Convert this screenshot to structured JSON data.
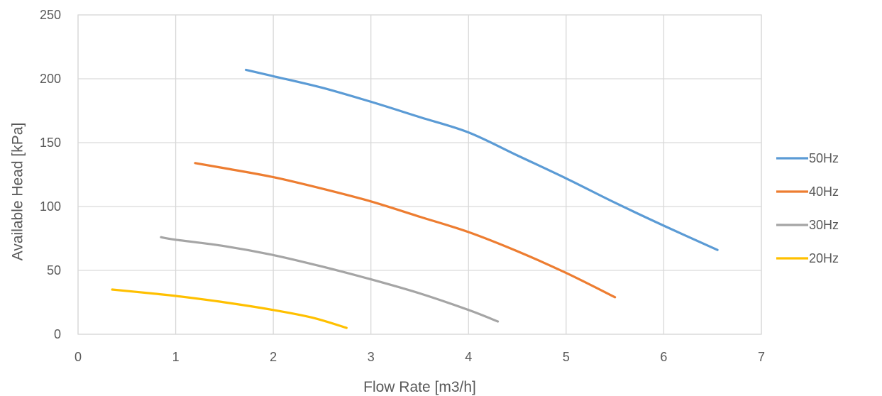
{
  "chart_data": {
    "type": "line",
    "title": "",
    "xlabel": "Flow Rate [m3/h]",
    "ylabel": "Available Head [kPa]",
    "xlim": [
      0,
      7
    ],
    "ylim": [
      0,
      250
    ],
    "x_ticks": [
      0,
      1,
      2,
      3,
      4,
      5,
      6,
      7
    ],
    "y_ticks": [
      0,
      50,
      100,
      150,
      200,
      250
    ],
    "grid": true,
    "legend_position": "right",
    "series": [
      {
        "name": "50Hz",
        "color": "#5b9bd5",
        "points": [
          [
            1.72,
            207
          ],
          [
            2.0,
            202
          ],
          [
            2.5,
            193
          ],
          [
            3.0,
            182
          ],
          [
            3.5,
            170
          ],
          [
            4.0,
            158
          ],
          [
            4.5,
            140
          ],
          [
            5.0,
            122
          ],
          [
            5.5,
            103
          ],
          [
            6.0,
            85
          ],
          [
            6.55,
            66
          ]
        ]
      },
      {
        "name": "40Hz",
        "color": "#ed7d31",
        "points": [
          [
            1.2,
            134
          ],
          [
            1.5,
            130
          ],
          [
            2.0,
            123
          ],
          [
            2.5,
            114
          ],
          [
            3.0,
            104
          ],
          [
            3.5,
            92
          ],
          [
            4.0,
            80
          ],
          [
            4.5,
            65
          ],
          [
            5.0,
            48
          ],
          [
            5.5,
            29
          ]
        ]
      },
      {
        "name": "30Hz",
        "color": "#a5a5a5",
        "points": [
          [
            0.85,
            76
          ],
          [
            1.0,
            74
          ],
          [
            1.5,
            69
          ],
          [
            2.0,
            62
          ],
          [
            2.5,
            53
          ],
          [
            3.0,
            43
          ],
          [
            3.5,
            32
          ],
          [
            4.0,
            19
          ],
          [
            4.3,
            10
          ]
        ]
      },
      {
        "name": "20Hz",
        "color": "#ffc000",
        "points": [
          [
            0.35,
            35
          ],
          [
            0.75,
            32
          ],
          [
            1.0,
            30
          ],
          [
            1.5,
            25
          ],
          [
            2.0,
            19
          ],
          [
            2.4,
            13
          ],
          [
            2.75,
            5
          ]
        ]
      }
    ]
  }
}
